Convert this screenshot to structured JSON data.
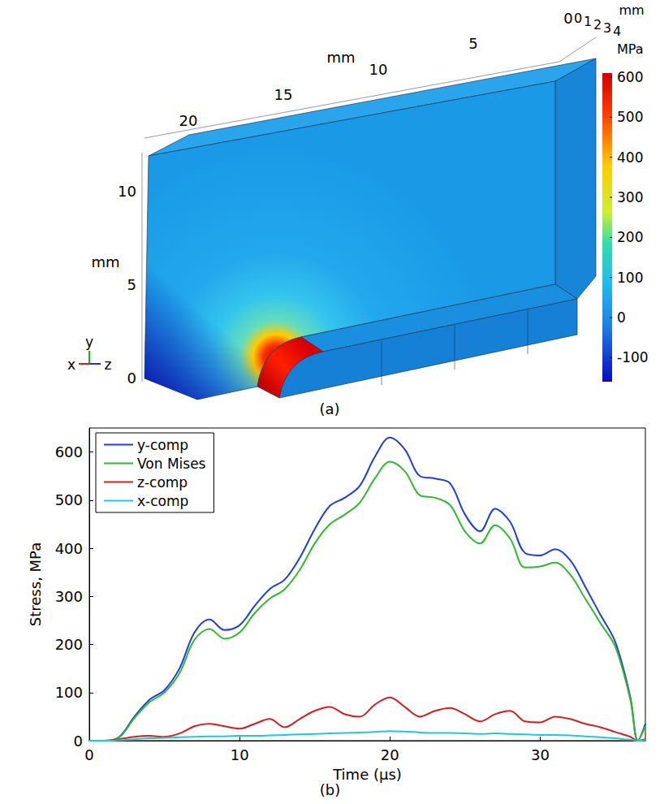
{
  "panel_a": {
    "caption": "(a)",
    "z_axis": {
      "ticks": [
        20,
        15,
        10,
        5,
        0
      ],
      "unit": "mm"
    },
    "x_axis": {
      "ticks": [
        0,
        1,
        2,
        3,
        4
      ],
      "unit": "mm"
    },
    "y_axis": {
      "ticks": [
        10,
        5,
        0
      ],
      "unit": "mm"
    },
    "colorbar": {
      "unit": "MPa",
      "range": [
        -160,
        610
      ],
      "ticks": [
        600,
        500,
        400,
        300,
        200,
        100,
        0,
        -100
      ]
    },
    "triad": [
      "x",
      "y",
      "z"
    ]
  },
  "chart_data": {
    "type": "line",
    "caption": "(b)",
    "xlabel": "Time (µs)",
    "ylabel": "Stress, MPa",
    "xlim": [
      0,
      37
    ],
    "xticks": [
      0,
      10,
      20,
      30
    ],
    "ylim": [
      0,
      650
    ],
    "yticks": [
      0,
      100,
      200,
      300,
      400,
      500,
      600
    ],
    "grid": false,
    "legend": "top-left",
    "x": [
      0,
      1,
      2,
      3,
      4,
      5,
      6,
      7,
      8,
      9,
      10,
      11,
      12,
      13,
      14,
      15,
      16,
      17,
      18,
      19,
      20,
      21,
      22,
      23,
      24,
      25,
      26,
      27,
      28,
      29,
      30,
      31,
      32,
      33,
      34,
      35,
      36,
      36.5,
      37
    ],
    "series": [
      {
        "name": "y-comp",
        "color": "#1f3fd8",
        "values": [
          0,
          0,
          8,
          50,
          85,
          105,
          150,
          225,
          252,
          230,
          240,
          280,
          315,
          335,
          380,
          440,
          488,
          505,
          530,
          590,
          630,
          605,
          550,
          545,
          535,
          470,
          435,
          482,
          455,
          390,
          385,
          398,
          375,
          320,
          262,
          205,
          90,
          0,
          35
        ]
      },
      {
        "name": "Von Mises",
        "color": "#33b833",
        "values": [
          0,
          0,
          7,
          47,
          80,
          100,
          140,
          210,
          232,
          212,
          225,
          265,
          295,
          315,
          355,
          410,
          450,
          470,
          495,
          545,
          580,
          560,
          510,
          505,
          490,
          435,
          410,
          448,
          420,
          360,
          362,
          370,
          345,
          295,
          245,
          195,
          85,
          0,
          30
        ]
      },
      {
        "name": "z-comp",
        "color": "#d02020",
        "values": [
          0,
          0,
          3,
          8,
          10,
          8,
          15,
          30,
          35,
          30,
          25,
          35,
          45,
          28,
          45,
          62,
          70,
          55,
          50,
          75,
          90,
          70,
          50,
          62,
          68,
          55,
          40,
          55,
          62,
          40,
          38,
          50,
          45,
          35,
          28,
          18,
          8,
          0,
          3
        ]
      },
      {
        "name": "x-comp",
        "color": "#22c8d8",
        "values": [
          0,
          0,
          1,
          3,
          5,
          6,
          7,
          8,
          9,
          9,
          10,
          10,
          11,
          12,
          13,
          14,
          15,
          16,
          17,
          18,
          20,
          19,
          17,
          16,
          16,
          15,
          14,
          15,
          14,
          13,
          12,
          12,
          11,
          9,
          7,
          5,
          2,
          0,
          1
        ]
      }
    ]
  }
}
